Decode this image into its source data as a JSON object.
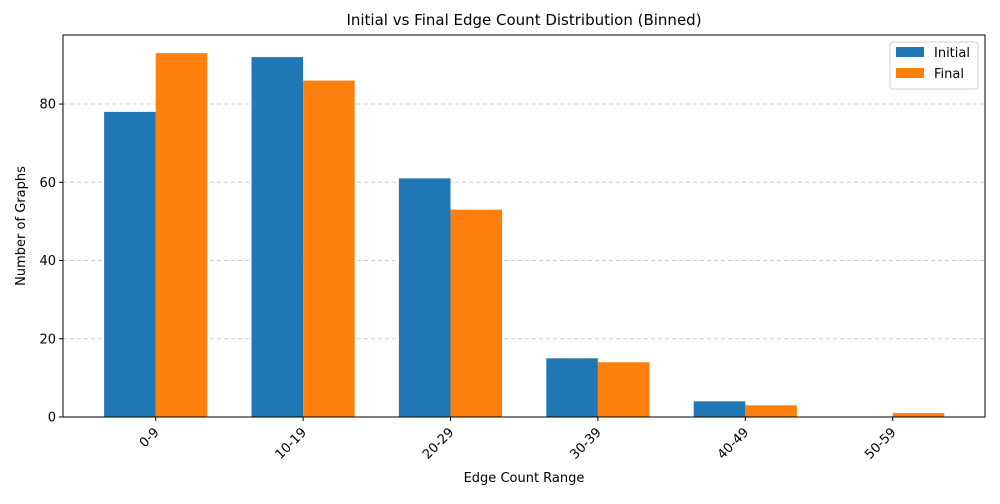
{
  "chart_data": {
    "type": "bar",
    "title": "Initial vs Final Edge Count Distribution (Binned)",
    "xlabel": "Edge Count Range",
    "ylabel": "Number of Graphs",
    "categories": [
      "0-9",
      "10-19",
      "20-29",
      "30-39",
      "40-49",
      "50-59"
    ],
    "series": [
      {
        "name": "Initial",
        "values": [
          78,
          92,
          61,
          15,
          4,
          0
        ],
        "color": "#1f77b4"
      },
      {
        "name": "Final",
        "values": [
          93,
          86,
          53,
          14,
          3,
          1
        ],
        "color": "#ff7f0e"
      }
    ],
    "ylim": [
      0,
      97.65
    ],
    "yticks": [
      0,
      20,
      40,
      60,
      80
    ],
    "grid": "y-dashed",
    "legend": "top-right"
  }
}
